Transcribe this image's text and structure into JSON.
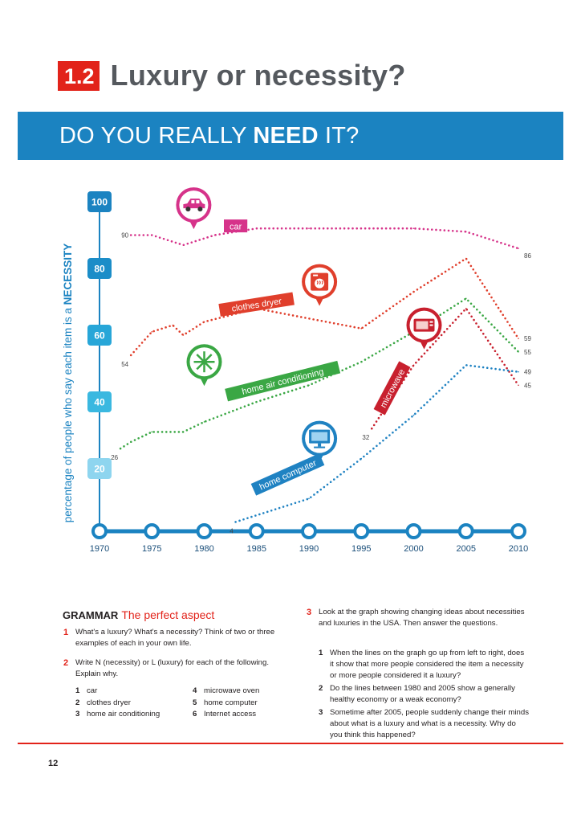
{
  "unit": {
    "number": "1.2",
    "title": "Luxury or necessity?"
  },
  "banner": {
    "pre": "DO YOU REALLY ",
    "bold": "NEED",
    "post": " IT?"
  },
  "chart_data": {
    "type": "line",
    "title": "DO YOU REALLY NEED IT?",
    "xlabel": "",
    "ylabel": "percentage of people who say each item is a NECESSITY",
    "ylabel_pre": "percentage of people who say each item is a ",
    "ylabel_bold": "NECESSITY",
    "xlim": [
      1970,
      2010
    ],
    "ylim": [
      0,
      100
    ],
    "x_ticks": [
      1970,
      1975,
      1980,
      1985,
      1990,
      1995,
      2000,
      2005,
      2010
    ],
    "y_ticks": [
      20,
      40,
      60,
      80,
      100
    ],
    "series": [
      {
        "name": "car",
        "color": "#d6338a",
        "icon": "car-icon",
        "x": [
          1973,
          1975,
          1978,
          1981,
          1985,
          1990,
          1995,
          2000,
          2005,
          2010
        ],
        "values": [
          90,
          90,
          87,
          90,
          92,
          92,
          92,
          92,
          91,
          86
        ],
        "start_label": "90",
        "end_label": "86"
      },
      {
        "name": "clothes dryer",
        "color": "#e03f2c",
        "icon": "clothes-dryer-icon",
        "x": [
          1973,
          1975,
          1977,
          1978,
          1980,
          1985,
          1990,
          1995,
          2000,
          2005,
          2010
        ],
        "values": [
          54,
          61,
          63,
          60,
          64,
          68,
          65,
          62,
          73,
          83,
          59
        ],
        "start_label": "54",
        "end_label": "59"
      },
      {
        "name": "home air conditioning",
        "color": "#3aa744",
        "icon": "snowflake-icon",
        "x": [
          1972,
          1973,
          1975,
          1978,
          1980,
          1985,
          1990,
          1995,
          2000,
          2005,
          2010
        ],
        "values": [
          26,
          28,
          31,
          31,
          34,
          40,
          45,
          52,
          61,
          71,
          55
        ],
        "start_label": "26",
        "end_label": "55"
      },
      {
        "name": "microwave",
        "color": "#c8202e",
        "icon": "microwave-icon",
        "x": [
          1996,
          2000,
          2005,
          2010
        ],
        "values": [
          32,
          51,
          68,
          45
        ],
        "start_label": "32",
        "end_label": "45"
      },
      {
        "name": "home computer",
        "color": "#1f82c2",
        "icon": "computer-icon",
        "x": [
          1983,
          1990,
          1995,
          2000,
          2005,
          2010
        ],
        "values": [
          4,
          11,
          23,
          36,
          51,
          49
        ],
        "start_label": "4",
        "end_label": "49"
      }
    ]
  },
  "grammar": {
    "heading": "GRAMMAR",
    "subheading": "The perfect aspect",
    "q1": {
      "num": "1",
      "text": "What's a luxury? What's a necessity? Think of two or three examples of each in your own life."
    },
    "q2": {
      "num": "2",
      "text": "Write N (necessity) or L (luxury) for each of the following. Explain why."
    },
    "items": [
      {
        "n": "1",
        "label": "car"
      },
      {
        "n": "2",
        "label": "clothes dryer"
      },
      {
        "n": "3",
        "label": "home air conditioning"
      },
      {
        "n": "4",
        "label": "microwave oven"
      },
      {
        "n": "5",
        "label": "home computer"
      },
      {
        "n": "6",
        "label": "Internet access"
      }
    ],
    "q3": {
      "num": "3",
      "text": "Look at the graph showing changing ideas about necessities and luxuries in the USA. Then answer the questions."
    },
    "subquestions": [
      {
        "n": "1",
        "text": "When the lines on the graph go up from left to right, does it show that more people considered the item a necessity or more people considered it a luxury?"
      },
      {
        "n": "2",
        "text": "Do the lines between 1980 and 2005 show a generally healthy economy or a weak economy?"
      },
      {
        "n": "3",
        "text": "Sometime after 2005, people suddenly change their minds about what is a luxury and what is a necessity. Why do you think this happened?"
      }
    ]
  },
  "page_number": "12"
}
